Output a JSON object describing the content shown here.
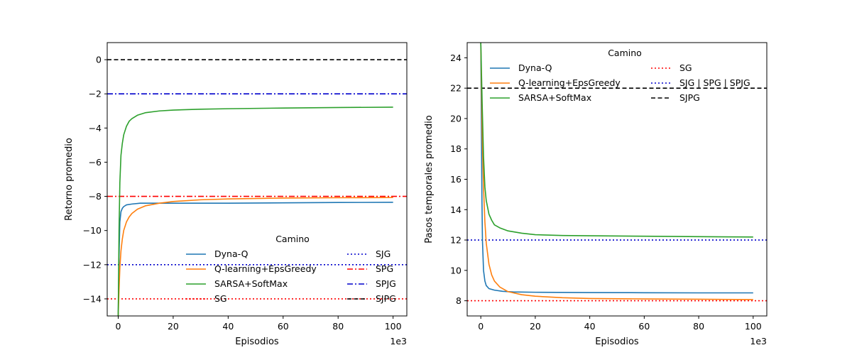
{
  "chart_data": [
    {
      "type": "line",
      "title": "",
      "xlabel": "Episodios",
      "ylabel": "Retorno promedio",
      "x_offset_label": "1e3",
      "xlim": [
        -4,
        105
      ],
      "ylim": [
        -15,
        1
      ],
      "xticks": [
        "0",
        "20",
        "40",
        "60",
        "80",
        "100"
      ],
      "xtick_values": [
        0,
        20,
        40,
        60,
        80,
        100
      ],
      "yticks": [
        "−14",
        "−12",
        "−10",
        "−8",
        "−6",
        "−4",
        "−2",
        "0"
      ],
      "ytick_values": [
        -14,
        -12,
        -10,
        -8,
        -6,
        -4,
        -2,
        0
      ],
      "legend_title": "Camino",
      "legend_position": "lower-right",
      "series": [
        {
          "name": "Dyna-Q",
          "color": "#1f77b4",
          "style": "solid",
          "x": [
            0,
            0.3,
            0.6,
            1,
            1.5,
            2,
            3,
            5,
            8,
            12,
            20,
            40,
            60,
            80,
            100
          ],
          "y": [
            -15,
            -11.5,
            -9.5,
            -8.9,
            -8.7,
            -8.6,
            -8.5,
            -8.45,
            -8.4,
            -8.4,
            -8.4,
            -8.4,
            -8.38,
            -8.36,
            -8.35
          ]
        },
        {
          "name": "Q-learning+EpsGreedy",
          "color": "#ff7f0e",
          "style": "solid",
          "x": [
            0,
            0.3,
            0.6,
            1,
            1.5,
            2,
            3,
            4,
            5,
            7,
            10,
            15,
            20,
            30,
            40,
            60,
            80,
            100
          ],
          "y": [
            -15,
            -13.5,
            -12.2,
            -11.2,
            -10.5,
            -10.0,
            -9.5,
            -9.2,
            -9.0,
            -8.75,
            -8.55,
            -8.4,
            -8.3,
            -8.2,
            -8.15,
            -8.1,
            -8.08,
            -8.07
          ]
        },
        {
          "name": "SARSA+SoftMax",
          "color": "#2ca02c",
          "style": "solid",
          "x": [
            0,
            0.3,
            0.6,
            1,
            1.5,
            2,
            3,
            4,
            5,
            7,
            10,
            15,
            20,
            30,
            40,
            60,
            80,
            100
          ],
          "y": [
            -15,
            -10.0,
            -7.2,
            -5.6,
            -4.9,
            -4.4,
            -3.9,
            -3.6,
            -3.45,
            -3.25,
            -3.1,
            -3.0,
            -2.95,
            -2.9,
            -2.87,
            -2.83,
            -2.8,
            -2.78
          ]
        }
      ],
      "reference_lines": [
        {
          "name": "SJG",
          "y": -12,
          "color": "#0000cc",
          "style": "dotted"
        },
        {
          "name": "SPG",
          "y": -8,
          "color": "#ff0000",
          "style": "dashdot"
        },
        {
          "name": "SPJG",
          "y": -2,
          "color": "#0000cc",
          "style": "dashdot"
        },
        {
          "name": "SJPG",
          "y": 0,
          "color": "#000000",
          "style": "dashed"
        },
        {
          "name": "SG",
          "y": -14,
          "color": "#ff0000",
          "style": "dotted"
        }
      ],
      "legend_layout": [
        [
          "Dyna-Q",
          "SJG"
        ],
        [
          "Q-learning+EpsGreedy",
          "SPG"
        ],
        [
          "SARSA+SoftMax",
          "SPJG"
        ],
        [
          "SG",
          "SJPG"
        ]
      ]
    },
    {
      "type": "line",
      "title": "",
      "xlabel": "Episodios",
      "ylabel": "Pasos temporales promedio",
      "x_offset_label": "1e3",
      "xlim": [
        -5,
        105
      ],
      "ylim": [
        7,
        25
      ],
      "xticks": [
        "0",
        "20",
        "40",
        "60",
        "80",
        "100"
      ],
      "xtick_values": [
        0,
        20,
        40,
        60,
        80,
        100
      ],
      "yticks": [
        "8",
        "10",
        "12",
        "14",
        "16",
        "18",
        "20",
        "22",
        "24"
      ],
      "ytick_values": [
        8,
        10,
        12,
        14,
        16,
        18,
        20,
        22,
        24
      ],
      "legend_title": "Camino",
      "legend_position": "top",
      "series": [
        {
          "name": "Dyna-Q",
          "color": "#1f77b4",
          "style": "solid",
          "x": [
            0,
            0.2,
            0.4,
            0.6,
            1,
            1.5,
            2,
            3,
            5,
            8,
            12,
            20,
            40,
            60,
            80,
            100
          ],
          "y": [
            25,
            20,
            15,
            12,
            10,
            9.3,
            9.0,
            8.8,
            8.7,
            8.62,
            8.58,
            8.56,
            8.54,
            8.53,
            8.52,
            8.52
          ]
        },
        {
          "name": "Q-learning+EpsGreedy",
          "color": "#ff7f0e",
          "style": "solid",
          "x": [
            0,
            0.5,
            1,
            1.5,
            2,
            3,
            4,
            5,
            7,
            10,
            15,
            20,
            30,
            40,
            60,
            80,
            100
          ],
          "y": [
            25,
            19,
            15.5,
            13.2,
            11.8,
            10.4,
            9.7,
            9.3,
            8.9,
            8.6,
            8.4,
            8.3,
            8.2,
            8.15,
            8.12,
            8.1,
            8.08
          ]
        },
        {
          "name": "SARSA+SoftMax",
          "color": "#2ca02c",
          "style": "solid",
          "x": [
            0,
            0.5,
            1,
            1.5,
            2,
            3,
            4,
            5,
            7,
            10,
            15,
            20,
            30,
            40,
            60,
            80,
            100
          ],
          "y": [
            25,
            21,
            17.5,
            15.5,
            14.6,
            13.7,
            13.3,
            13.0,
            12.8,
            12.6,
            12.45,
            12.35,
            12.3,
            12.28,
            12.25,
            12.22,
            12.2
          ]
        }
      ],
      "reference_lines": [
        {
          "name": "SG",
          "y": 8,
          "color": "#ff0000",
          "style": "dotted"
        },
        {
          "name": "SJG | SPG | SPJG",
          "y": 12,
          "color": "#0000cc",
          "style": "dotted"
        },
        {
          "name": "SJPG",
          "y": 22,
          "color": "#000000",
          "style": "dashed"
        }
      ],
      "legend_layout": [
        [
          "Dyna-Q",
          "SG"
        ],
        [
          "Q-learning+EpsGreedy",
          "SJG | SPG | SPJG"
        ],
        [
          "SARSA+SoftMax",
          "SJPG"
        ]
      ]
    }
  ]
}
